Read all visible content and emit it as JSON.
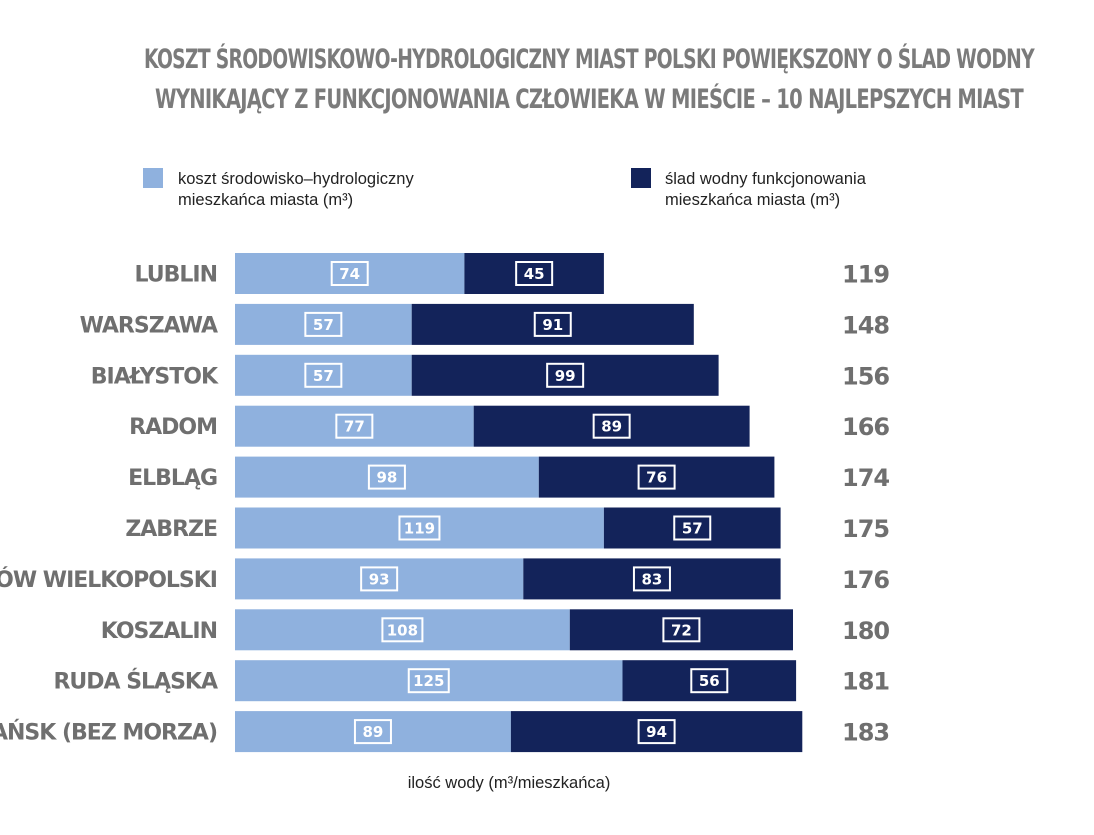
{
  "chart_data": {
    "type": "bar",
    "orientation": "horizontal",
    "stacked": true,
    "title_lines": [
      "KOSZT ŚRODOWISKOWO-HYDROLOGICZNY MIAST POLSKI POWIĘKSZONY O ŚLAD WODNY",
      "WYNIKAJĄCY Z FUNKCJONOWANIA CZŁOWIEKA W MIEŚCIE – 10 NAJLEPSZYCH MIAST"
    ],
    "xlabel": "ilość wody (m³/mieszkańca)",
    "legend_placement": "top",
    "grid": false,
    "xlim": [
      0,
      183
    ],
    "categories": [
      "LUBLIN",
      "WARSZAWA",
      "BIAŁYSTOK",
      "RADOM",
      "ELBLĄG",
      "ZABRZE",
      "GORZÓW WIELKOPOLSKI",
      "KOSZALIN",
      "RUDA ŚLĄSKA",
      "GDAŃSK (BEZ MORZA)"
    ],
    "series": [
      {
        "legend_lines": [
          "koszt środowisko–hydrologiczny",
          "mieszkańca miasta (m³)"
        ],
        "color": "#8fb1de",
        "values": [
          74,
          57,
          57,
          77,
          98,
          119,
          93,
          108,
          125,
          89
        ]
      },
      {
        "legend_lines": [
          "ślad wodny funkcjonowania",
          "mieszkańca miasta (m³)"
        ],
        "color": "#13235a",
        "values": [
          45,
          91,
          99,
          89,
          76,
          57,
          83,
          72,
          56,
          94
        ]
      }
    ],
    "totals": [
      119,
      148,
      156,
      166,
      174,
      175,
      176,
      180,
      181,
      183
    ]
  }
}
